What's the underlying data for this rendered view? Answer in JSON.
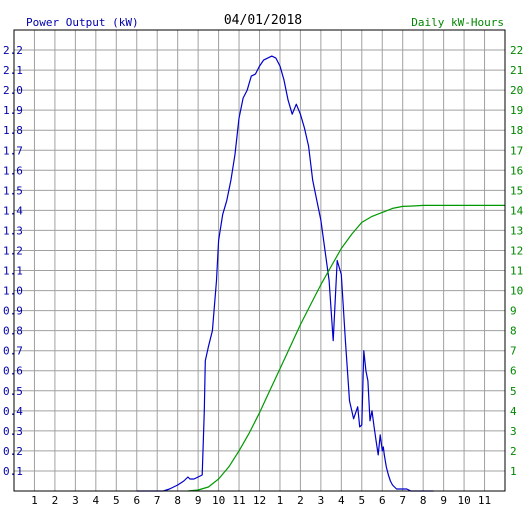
{
  "chart_data": {
    "type": "line",
    "title": "04/01/2018",
    "left_axis_label": "Power Output (kW)",
    "right_axis_label": "Daily kW-Hours",
    "x_ticks": [
      "1",
      "2",
      "3",
      "4",
      "5",
      "6",
      "7",
      "8",
      "9",
      "10",
      "11",
      "12",
      "1",
      "2",
      "3",
      "4",
      "5",
      "6",
      "7",
      "8",
      "9",
      "10",
      "11"
    ],
    "xlim": [
      0,
      24
    ],
    "ylim_left": [
      0,
      2.3
    ],
    "ylim_right": [
      0,
      23
    ],
    "y_ticks_left": [
      "0.1",
      "0.2",
      "0.3",
      "0.4",
      "0.5",
      "0.6",
      "0.7",
      "0.8",
      "0.9",
      "1.0",
      "1.1",
      "1.2",
      "1.3",
      "1.4",
      "1.5",
      "1.6",
      "1.7",
      "1.8",
      "1.9",
      "2.0",
      "2.1",
      "2.2"
    ],
    "y_ticks_right": [
      "1",
      "2",
      "3",
      "4",
      "5",
      "6",
      "7",
      "8",
      "9",
      "10",
      "11",
      "12",
      "13",
      "14",
      "15",
      "16",
      "17",
      "18",
      "19",
      "20",
      "21",
      "22"
    ],
    "colors": {
      "left_label": "#0000aa",
      "right_label": "#008800",
      "power": "#0000cc",
      "energy": "#009900",
      "grid": "#a0a0a0",
      "frame": "#000000"
    },
    "series": [
      {
        "axis": "left",
        "x": [
          6.0,
          7.3,
          7.6,
          8.0,
          8.3,
          8.5,
          8.6,
          8.8,
          9.0,
          9.2,
          9.3,
          9.35,
          9.5,
          9.7,
          9.9,
          10.0,
          10.2,
          10.4,
          10.6,
          10.8,
          11.0,
          11.2,
          11.4,
          11.6,
          11.8,
          12.0,
          12.2,
          12.4,
          12.6,
          12.8,
          13.0,
          13.2,
          13.4,
          13.6,
          13.8,
          14.0,
          14.2,
          14.4,
          14.6,
          14.8,
          15.0,
          15.2,
          15.4,
          15.6,
          15.8,
          16.0,
          16.2,
          16.4,
          16.6,
          16.8,
          16.9,
          17.0,
          17.1,
          17.2,
          17.3,
          17.4,
          17.5,
          17.6,
          17.7,
          17.8,
          17.9,
          18.0,
          18.05,
          18.1,
          18.2,
          18.3,
          18.4,
          18.5,
          18.6,
          18.7,
          18.8,
          18.9,
          19.0,
          19.2,
          19.4,
          19.6,
          19.8,
          20.0,
          20.2,
          20.5
        ],
        "values": [
          0.0,
          0.0,
          0.01,
          0.03,
          0.05,
          0.07,
          0.06,
          0.06,
          0.07,
          0.08,
          0.4,
          0.65,
          0.72,
          0.8,
          1.05,
          1.25,
          1.38,
          1.45,
          1.55,
          1.68,
          1.86,
          1.96,
          2.0,
          2.07,
          2.08,
          2.12,
          2.15,
          2.16,
          2.17,
          2.16,
          2.12,
          2.05,
          1.95,
          1.88,
          1.93,
          1.88,
          1.81,
          1.72,
          1.55,
          1.45,
          1.35,
          1.2,
          1.05,
          0.75,
          1.15,
          1.08,
          0.75,
          0.45,
          0.36,
          0.42,
          0.32,
          0.33,
          0.7,
          0.6,
          0.55,
          0.35,
          0.4,
          0.32,
          0.25,
          0.18,
          0.28,
          0.2,
          0.22,
          0.18,
          0.12,
          0.08,
          0.05,
          0.03,
          0.02,
          0.01,
          0.01,
          0.01,
          0.01,
          0.01,
          0.0,
          0.0,
          0.0,
          0.0,
          0.0,
          0.0
        ]
      },
      {
        "axis": "right",
        "x": [
          8.5,
          9.0,
          9.5,
          10.0,
          10.5,
          11.0,
          11.5,
          12.0,
          12.5,
          13.0,
          13.5,
          14.0,
          14.5,
          15.0,
          15.5,
          16.0,
          16.5,
          17.0,
          17.5,
          18.0,
          18.5,
          19.0,
          19.5,
          20.0,
          21.0,
          22.0,
          23.0,
          24.0
        ],
        "values": [
          0.0,
          0.05,
          0.2,
          0.6,
          1.2,
          2.0,
          2.9,
          3.9,
          5.0,
          6.1,
          7.2,
          8.3,
          9.3,
          10.3,
          11.2,
          12.1,
          12.8,
          13.4,
          13.7,
          13.9,
          14.1,
          14.2,
          14.22,
          14.25,
          14.25,
          14.25,
          14.25,
          14.25
        ]
      }
    ]
  }
}
